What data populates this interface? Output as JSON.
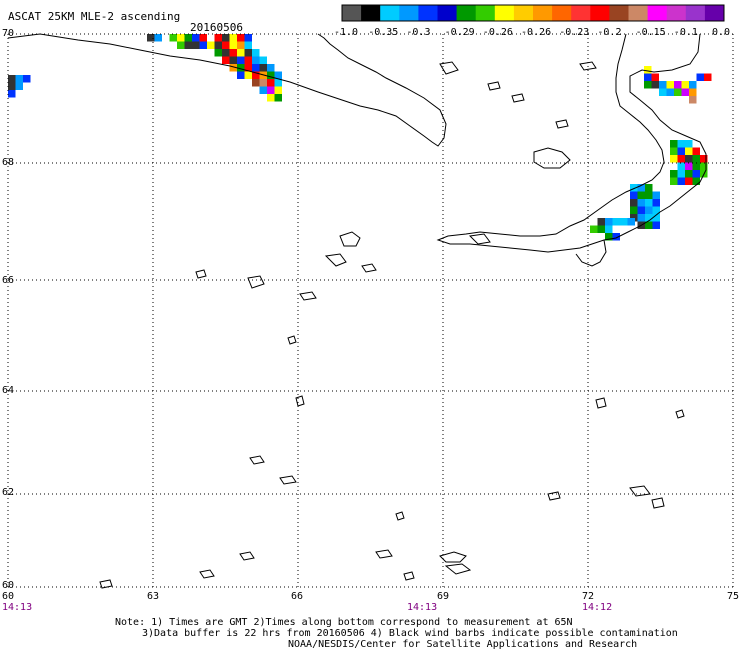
{
  "header": {
    "title": "ASCAT 25KM MLE-2 ascending",
    "date": "20160506"
  },
  "colorbar": {
    "colors": [
      "#555555",
      "#000000",
      "#00ccff",
      "#0099ff",
      "#0033ff",
      "#0000cc",
      "#009900",
      "#33cc00",
      "#ffff00",
      "#ffcc00",
      "#ff9900",
      "#ff6600",
      "#ff3333",
      "#ff0000",
      "#994422",
      "#cc8866",
      "#ff00ff",
      "#cc33cc",
      "#9933cc",
      "#6600aa"
    ],
    "labels": [
      "-1.0",
      "-0.35",
      "-0.3",
      "-0.29",
      "-0.26",
      "-0.26",
      "-0.23",
      "-0.2",
      "-0.15",
      "-0.1",
      "0.0"
    ]
  },
  "map": {
    "lat_labels": [
      "70",
      "68",
      "66",
      "64",
      "62",
      "60"
    ],
    "lon_labels": [
      "60",
      "63",
      "66",
      "69",
      "72",
      "75"
    ],
    "time_labels": [
      "14:13",
      "14:13",
      "14:12"
    ],
    "palette": {
      "K": "#333333",
      "B": "#0033ff",
      "C": "#00ccff",
      "D": "#0099ff",
      "G": "#009900",
      "L": "#33cc00",
      "Y": "#ffff00",
      "O": "#ff9900",
      "R": "#ff0000",
      "N": "#994422",
      "T": "#cc8866",
      "M": "#cc00ff",
      "W": "#ffffff",
      "E": "#555555"
    }
  },
  "notes": {
    "line1": "Note: 1) Times are GMT 2)Times along bottom correspond to measurement at 65N",
    "line2": "3)Data buffer is 22 hrs from 20160506 4) Black wind barbs indicate possible contamination",
    "line3": "NOAA/NESDIS/Center for Satellite Applications and Research"
  }
}
